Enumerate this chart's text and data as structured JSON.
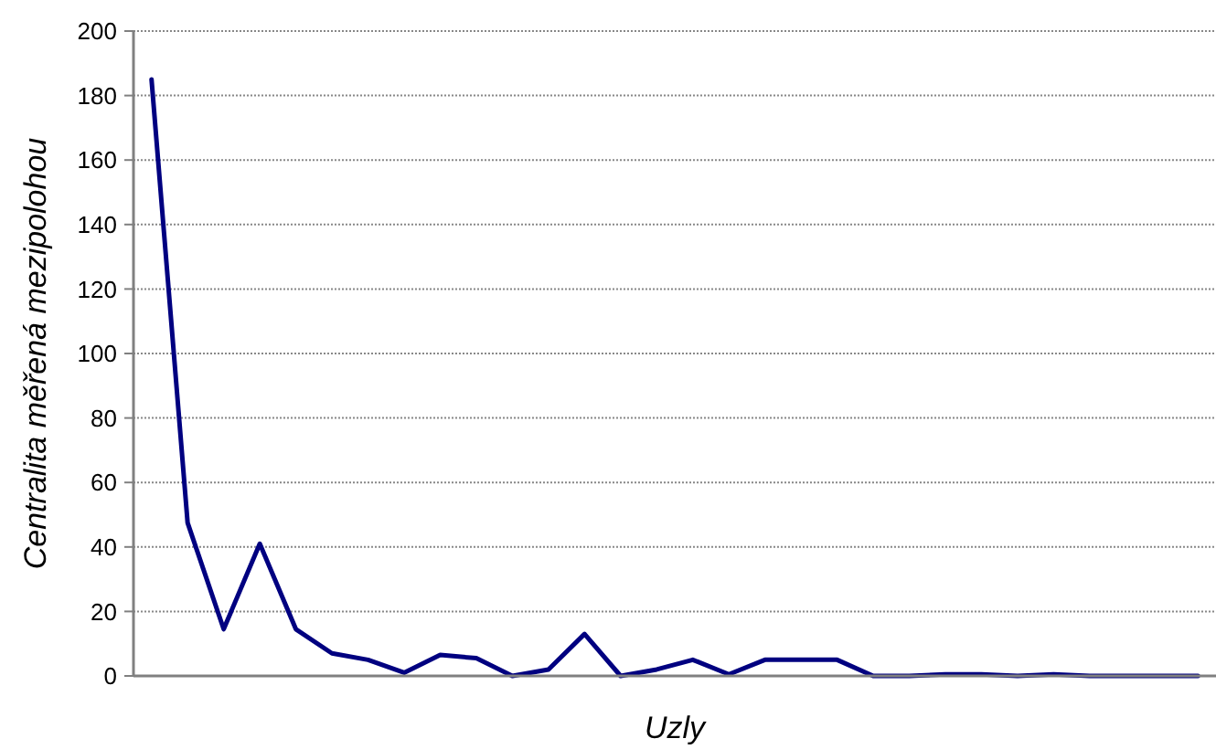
{
  "chart_data": {
    "type": "line",
    "xlabel": "Uzly",
    "ylabel": "Centralita měřená mezipolohou",
    "categories": [
      null,
      null,
      null,
      null,
      null,
      null,
      null,
      null,
      null,
      null,
      null,
      null,
      null,
      null,
      null,
      null,
      null,
      null,
      null,
      null,
      null,
      null,
      null,
      null,
      null,
      null,
      null,
      null,
      null,
      null
    ],
    "series": [
      {
        "color": "#000080",
        "values": [
          185,
          47.5,
          14.5,
          41,
          14.5,
          7,
          5,
          1,
          6.5,
          5.5,
          0,
          2,
          13,
          0,
          2,
          5,
          0.5,
          5,
          5,
          5,
          0,
          0,
          0.5,
          0.5,
          0,
          0.5,
          0,
          0,
          0,
          0
        ]
      }
    ],
    "ylim": [
      0,
      200
    ],
    "yticks": [
      0,
      20,
      40,
      60,
      80,
      100,
      120,
      140,
      160,
      180,
      200
    ],
    "grid": "y",
    "marker": "none",
    "line_style": "solid"
  }
}
